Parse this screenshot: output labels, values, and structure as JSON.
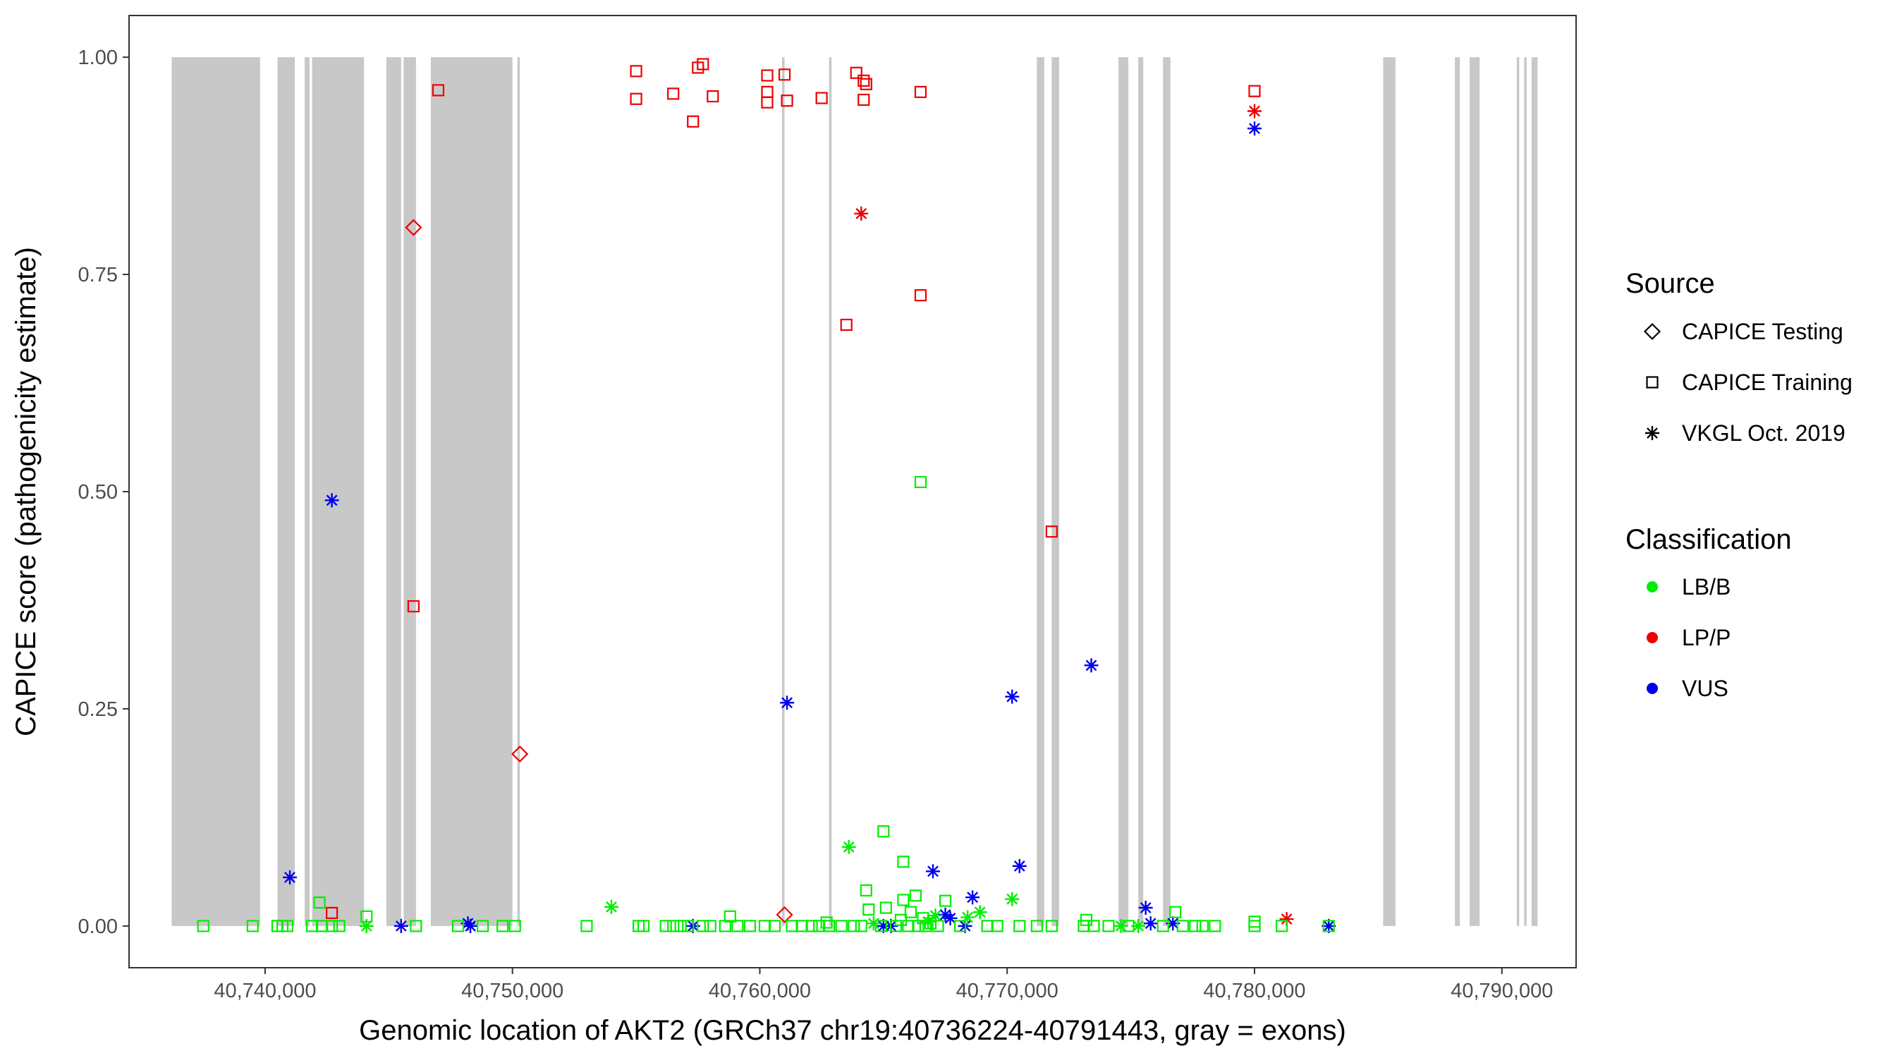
{
  "chart_data": {
    "type": "scatter",
    "title": "",
    "xlabel": "Genomic location of AKT2 (GRCh37 chr19:40736224-40791443, gray = exons)",
    "ylabel": "CAPICE score (pathogenicity estimate)",
    "xlim": [
      40734500,
      40793000
    ],
    "ylim": [
      -0.048,
      1.048
    ],
    "x_ticks": [
      40740000,
      40750000,
      40760000,
      40770000,
      40780000,
      40790000
    ],
    "x_tick_labels": [
      "40,740,000",
      "40,750,000",
      "40,760,000",
      "40,770,000",
      "40,780,000",
      "40,790,000"
    ],
    "y_ticks": [
      0,
      0.25,
      0.5,
      0.75,
      1
    ],
    "y_tick_labels": [
      "0.00",
      "0.25",
      "0.50",
      "0.75",
      "1.00"
    ],
    "grid": false,
    "exons": [
      [
        40736224,
        40739800
      ],
      [
        40740500,
        40741200
      ],
      [
        40741600,
        40741800
      ],
      [
        40741900,
        40744000
      ],
      [
        40744900,
        40745500
      ],
      [
        40745600,
        40746100
      ],
      [
        40746700,
        40750000
      ],
      [
        40750200,
        40750300
      ],
      [
        40760900,
        40761000
      ],
      [
        40762800,
        40762900
      ],
      [
        40771200,
        40771500
      ],
      [
        40771800,
        40772100
      ],
      [
        40774500,
        40774900
      ],
      [
        40775300,
        40775500
      ],
      [
        40776300,
        40776600
      ],
      [
        40785200,
        40785700
      ],
      [
        40788100,
        40788300
      ],
      [
        40788700,
        40789100
      ],
      [
        40790600,
        40790700
      ],
      [
        40790900,
        40791000
      ],
      [
        40791200,
        40791443
      ]
    ],
    "legend": {
      "placement": "right",
      "source_title": "Source",
      "source_items": [
        {
          "label": "CAPICE Testing",
          "shape": "diamond"
        },
        {
          "label": "CAPICE Training",
          "shape": "square"
        },
        {
          "label": "VKGL Oct. 2019",
          "shape": "asterisk"
        }
      ],
      "class_title": "Classification",
      "class_items": [
        {
          "label": "LB/B",
          "color": "#00ee00"
        },
        {
          "label": "LP/P",
          "color": "#ee0000"
        },
        {
          "label": "VUS",
          "color": "#0000ee"
        }
      ]
    },
    "series": [
      {
        "source": "CAPICE Training",
        "classification": "LP/P",
        "points": [
          [
            40747000,
            0.962
          ],
          [
            40755000,
            0.984
          ],
          [
            40755000,
            0.952
          ],
          [
            40756500,
            0.958
          ],
          [
            40757300,
            0.926
          ],
          [
            40757500,
            0.988
          ],
          [
            40757700,
            0.992
          ],
          [
            40758100,
            0.955
          ],
          [
            40760300,
            0.979
          ],
          [
            40760300,
            0.96
          ],
          [
            40760300,
            0.948
          ],
          [
            40761000,
            0.98
          ],
          [
            40761100,
            0.95
          ],
          [
            40762500,
            0.953
          ],
          [
            40763500,
            0.692
          ],
          [
            40763900,
            0.982
          ],
          [
            40764200,
            0.951
          ],
          [
            40764200,
            0.973
          ],
          [
            40764300,
            0.969
          ],
          [
            40766500,
            0.96
          ],
          [
            40766500,
            0.726
          ],
          [
            40771800,
            0.454
          ],
          [
            40746000,
            0.368
          ],
          [
            40780000,
            0.961
          ],
          [
            40742700,
            0.015
          ]
        ]
      },
      {
        "source": "CAPICE Testing",
        "classification": "LP/P",
        "points": [
          [
            40746000,
            0.804
          ],
          [
            40750300,
            0.198
          ],
          [
            40761000,
            0.013
          ]
        ]
      },
      {
        "source": "VKGL Oct. 2019",
        "classification": "LP/P",
        "points": [
          [
            40764100,
            0.82
          ],
          [
            40780000,
            0.938
          ],
          [
            40781300,
            0.008
          ]
        ]
      },
      {
        "source": "VKGL Oct. 2019",
        "classification": "VUS",
        "points": [
          [
            40742700,
            0.49
          ],
          [
            40741000,
            0.056
          ],
          [
            40761100,
            0.257
          ],
          [
            40770200,
            0.264
          ],
          [
            40773400,
            0.3
          ],
          [
            40780000,
            0.918
          ],
          [
            40767000,
            0.063
          ],
          [
            40768600,
            0.033
          ],
          [
            40770500,
            0.069
          ],
          [
            40775600,
            0.021
          ],
          [
            40745500,
            0.0
          ],
          [
            40748200,
            0.003
          ],
          [
            40748300,
            0.0
          ],
          [
            40757300,
            0.0
          ],
          [
            40765000,
            0.0
          ],
          [
            40765300,
            0.0
          ],
          [
            40767500,
            0.013
          ],
          [
            40767700,
            0.009
          ],
          [
            40768300,
            0.0
          ],
          [
            40775800,
            0.003
          ],
          [
            40776700,
            0.003
          ],
          [
            40783000,
            0.0
          ]
        ]
      },
      {
        "source": "VKGL Oct. 2019",
        "classification": "LB/B",
        "points": [
          [
            40763600,
            0.091
          ],
          [
            40754000,
            0.022
          ],
          [
            40770200,
            0.031
          ],
          [
            40768900,
            0.016
          ],
          [
            40768400,
            0.01
          ],
          [
            40744100,
            0.0
          ],
          [
            40774600,
            0.0
          ],
          [
            40775300,
            0.0
          ],
          [
            40764600,
            0.003
          ],
          [
            40766800,
            0.005
          ],
          [
            40767100,
            0.012
          ]
        ]
      },
      {
        "source": "CAPICE Training",
        "classification": "LB/B",
        "points": [
          [
            40766500,
            0.511
          ],
          [
            40765000,
            0.109
          ],
          [
            40765800,
            0.074
          ],
          [
            40764300,
            0.041
          ],
          [
            40766300,
            0.035
          ],
          [
            40765800,
            0.03
          ],
          [
            40767500,
            0.029
          ],
          [
            40742200,
            0.027
          ],
          [
            40765100,
            0.021
          ],
          [
            40764400,
            0.019
          ],
          [
            40766100,
            0.016
          ],
          [
            40776800,
            0.016
          ],
          [
            40758800,
            0.011
          ],
          [
            40744100,
            0.011
          ],
          [
            40766600,
            0.009
          ],
          [
            40765700,
            0.007
          ],
          [
            40773200,
            0.007
          ],
          [
            40780000,
            0.005
          ],
          [
            40762700,
            0.004
          ],
          [
            40766900,
            0.003
          ],
          [
            40737500,
            0.0
          ],
          [
            40739500,
            0.0
          ],
          [
            40740500,
            0.0
          ],
          [
            40740700,
            0.0
          ],
          [
            40740900,
            0.0
          ],
          [
            40741900,
            0.0
          ],
          [
            40742300,
            0.0
          ],
          [
            40742700,
            0.0
          ],
          [
            40743000,
            0.0
          ],
          [
            40746100,
            0.0
          ],
          [
            40747800,
            0.0
          ],
          [
            40748800,
            0.0
          ],
          [
            40749600,
            0.0
          ],
          [
            40750100,
            0.0
          ],
          [
            40753000,
            0.0
          ],
          [
            40755100,
            0.0
          ],
          [
            40755300,
            0.0
          ],
          [
            40756200,
            0.0
          ],
          [
            40756500,
            0.0
          ],
          [
            40756800,
            0.0
          ],
          [
            40757100,
            0.0
          ],
          [
            40757700,
            0.0
          ],
          [
            40758000,
            0.0
          ],
          [
            40758600,
            0.0
          ],
          [
            40759100,
            0.0
          ],
          [
            40759600,
            0.0
          ],
          [
            40760200,
            0.0
          ],
          [
            40760600,
            0.0
          ],
          [
            40761300,
            0.0
          ],
          [
            40761700,
            0.0
          ],
          [
            40762100,
            0.0
          ],
          [
            40762400,
            0.0
          ],
          [
            40762800,
            0.0
          ],
          [
            40763300,
            0.0
          ],
          [
            40763800,
            0.0
          ],
          [
            40764100,
            0.0
          ],
          [
            40764900,
            0.0
          ],
          [
            40765500,
            0.0
          ],
          [
            40766000,
            0.0
          ],
          [
            40766400,
            0.0
          ],
          [
            40766700,
            0.0
          ],
          [
            40767200,
            0.0
          ],
          [
            40768100,
            0.0
          ],
          [
            40769200,
            0.0
          ],
          [
            40769600,
            0.0
          ],
          [
            40770500,
            0.0
          ],
          [
            40771200,
            0.0
          ],
          [
            40771800,
            0.0
          ],
          [
            40773100,
            0.0
          ],
          [
            40773500,
            0.0
          ],
          [
            40774100,
            0.0
          ],
          [
            40774900,
            0.0
          ],
          [
            40776300,
            0.0
          ],
          [
            40777100,
            0.0
          ],
          [
            40777600,
            0.0
          ],
          [
            40777900,
            0.0
          ],
          [
            40778400,
            0.0
          ],
          [
            40780000,
            0.0
          ],
          [
            40781100,
            0.0
          ],
          [
            40783000,
            0.0
          ]
        ]
      }
    ]
  }
}
